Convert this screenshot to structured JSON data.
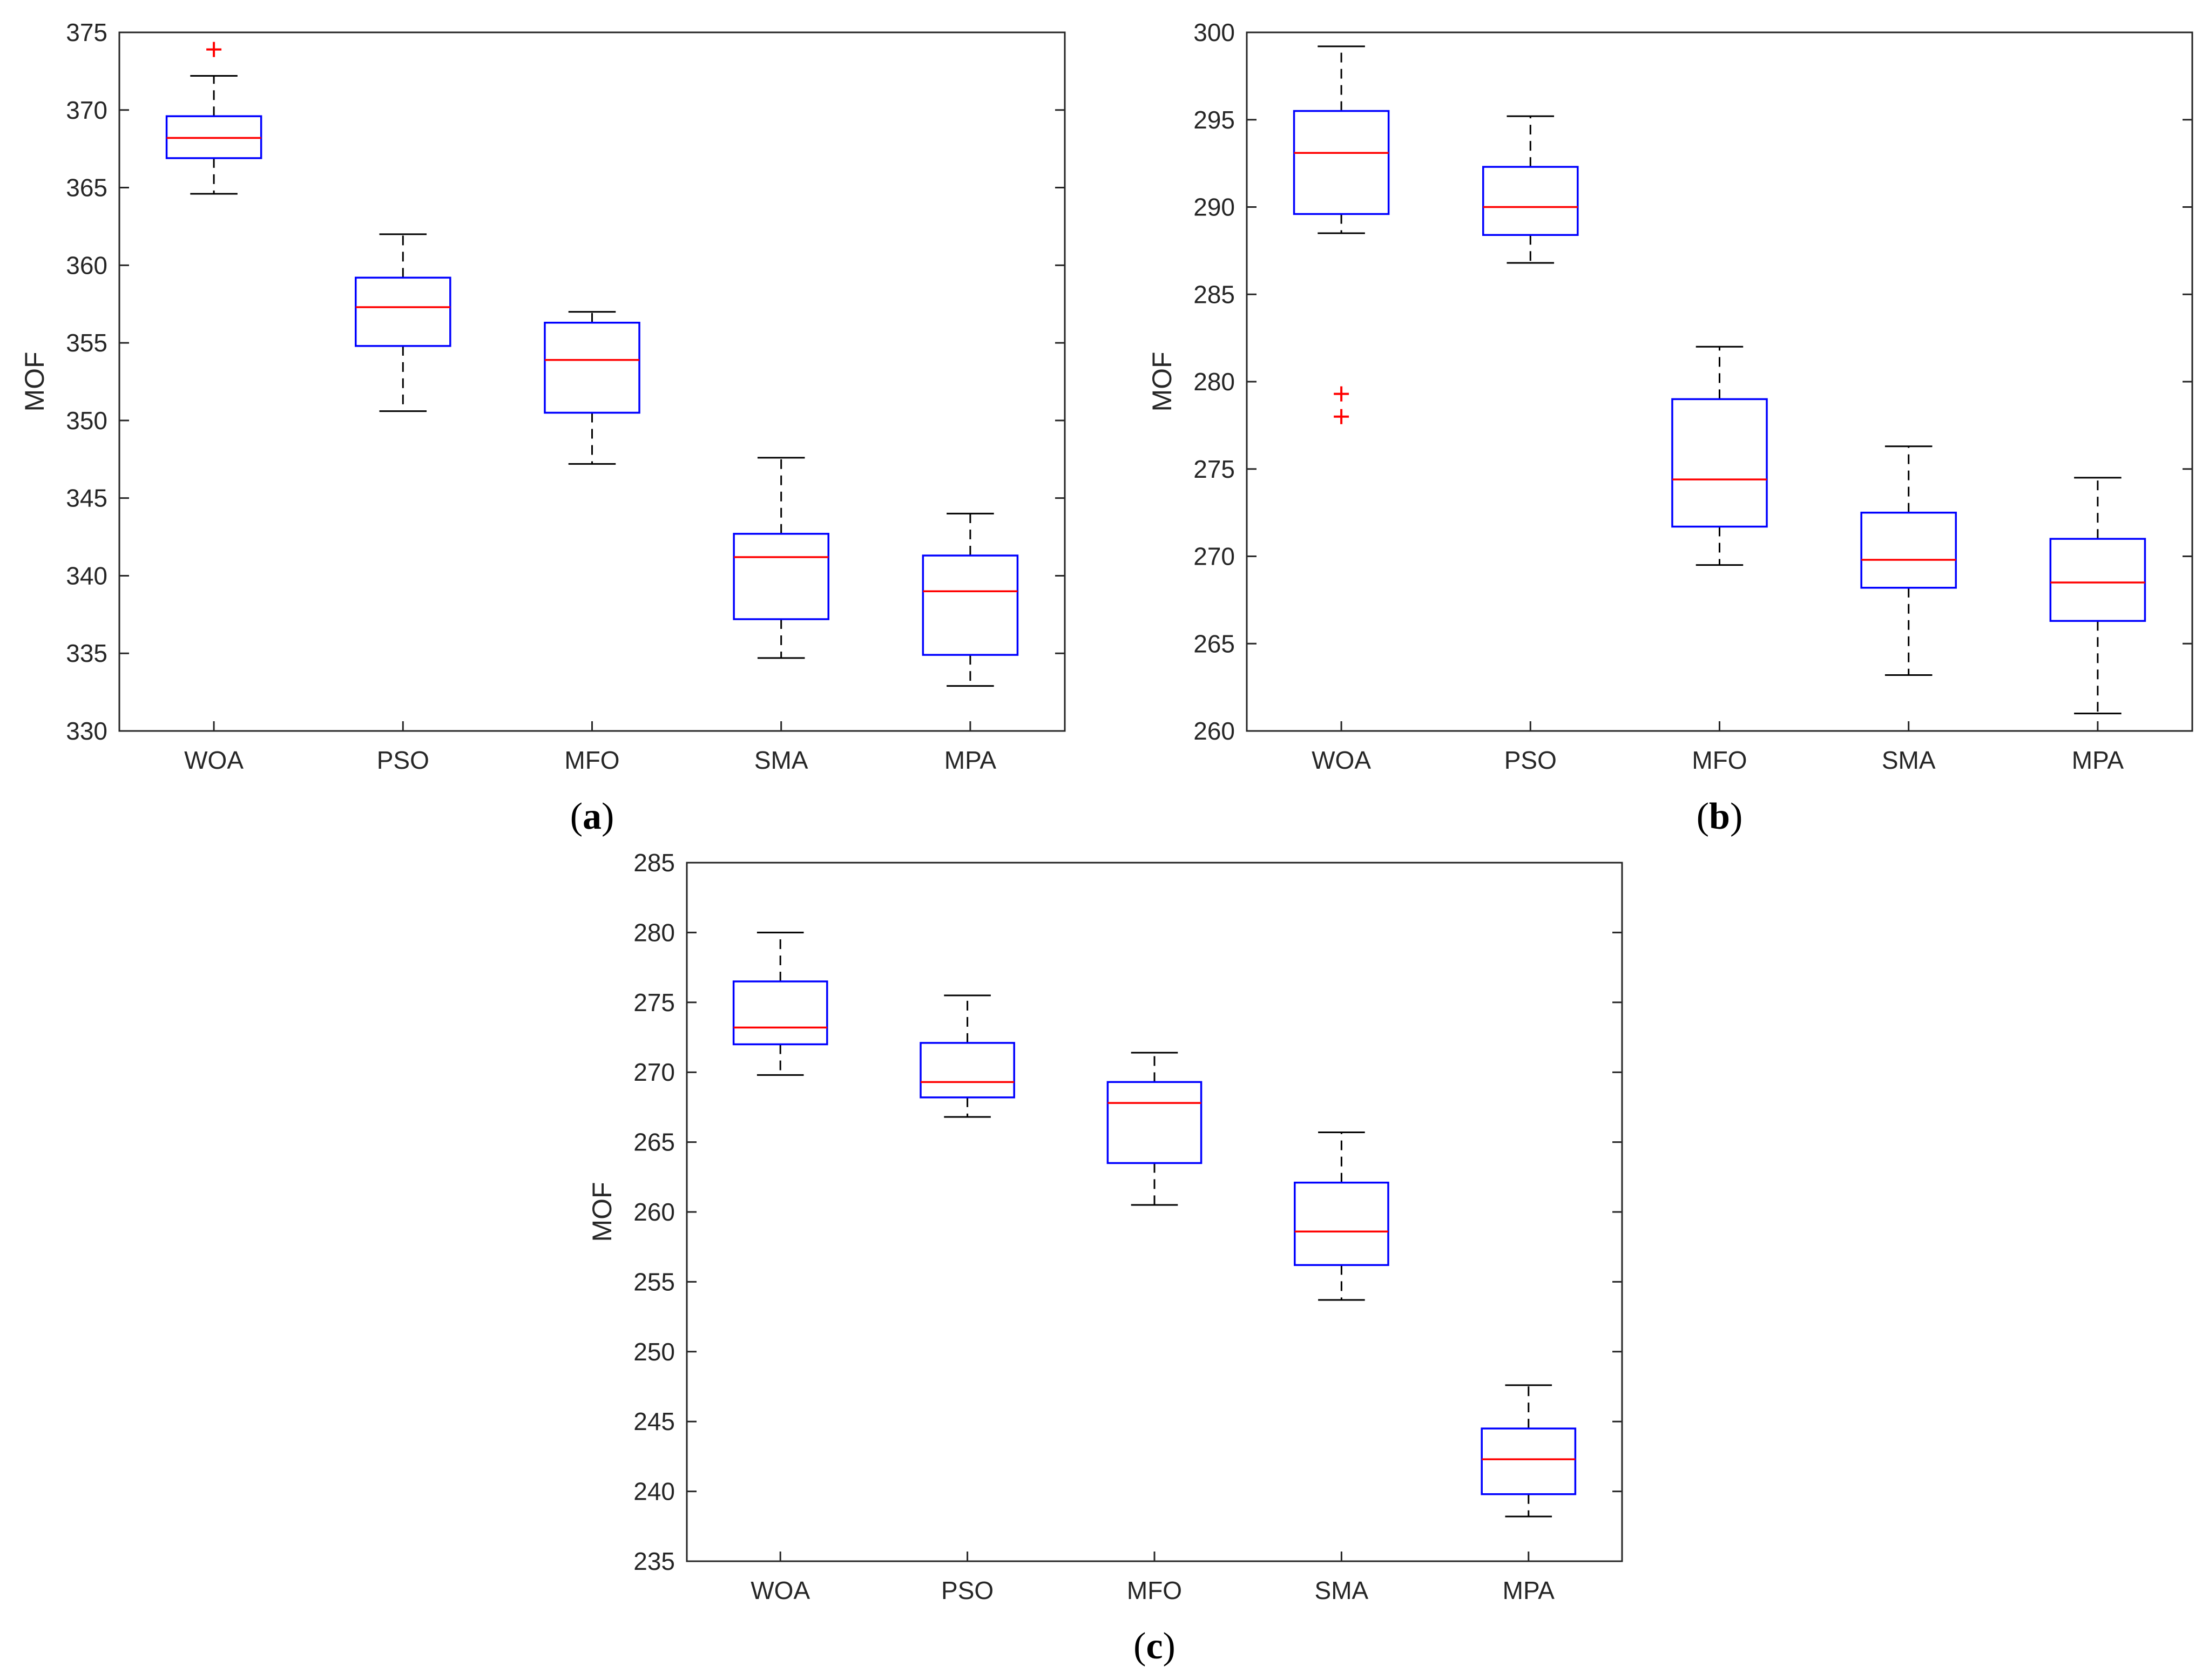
{
  "colors": {
    "box": "#0000ff",
    "median": "#ff0000",
    "whisker": "#000000",
    "outlier": "#ff0000",
    "axis": "#262626",
    "tick_text": "#262626"
  },
  "chart_data": [
    {
      "type": "boxplot",
      "panel_label": "a",
      "ylabel": "MOF",
      "ylim": [
        330,
        375
      ],
      "yticks": [
        330,
        335,
        340,
        345,
        350,
        355,
        360,
        365,
        370,
        375
      ],
      "categories": [
        "WOA",
        "PSO",
        "MFO",
        "SMA",
        "MPA"
      ],
      "boxes": [
        {
          "name": "WOA",
          "whisker_low": 364.6,
          "q1": 366.9,
          "median": 368.2,
          "q3": 369.6,
          "whisker_high": 372.2,
          "outliers": [
            373.9
          ]
        },
        {
          "name": "PSO",
          "whisker_low": 350.6,
          "q1": 354.8,
          "median": 357.3,
          "q3": 359.2,
          "whisker_high": 362.0,
          "outliers": []
        },
        {
          "name": "MFO",
          "whisker_low": 347.2,
          "q1": 350.5,
          "median": 353.9,
          "q3": 356.3,
          "whisker_high": 357.0,
          "outliers": []
        },
        {
          "name": "SMA",
          "whisker_low": 334.7,
          "q1": 337.2,
          "median": 341.2,
          "q3": 342.7,
          "whisker_high": 347.6,
          "outliers": []
        },
        {
          "name": "MPA",
          "whisker_low": 332.9,
          "q1": 334.9,
          "median": 339.0,
          "q3": 341.3,
          "whisker_high": 344.0,
          "outliers": []
        }
      ]
    },
    {
      "type": "boxplot",
      "panel_label": "b",
      "ylabel": "MOF",
      "ylim": [
        260,
        300
      ],
      "yticks": [
        260,
        265,
        270,
        275,
        280,
        285,
        290,
        295,
        300
      ],
      "categories": [
        "WOA",
        "PSO",
        "MFO",
        "SMA",
        "MPA"
      ],
      "boxes": [
        {
          "name": "WOA",
          "whisker_low": 288.5,
          "q1": 289.6,
          "median": 293.1,
          "q3": 295.5,
          "whisker_high": 299.2,
          "outliers": [
            279.3,
            278.0
          ]
        },
        {
          "name": "PSO",
          "whisker_low": 286.8,
          "q1": 288.4,
          "median": 290.0,
          "q3": 292.3,
          "whisker_high": 295.2,
          "outliers": []
        },
        {
          "name": "MFO",
          "whisker_low": 269.5,
          "q1": 271.7,
          "median": 274.4,
          "q3": 279.0,
          "whisker_high": 282.0,
          "outliers": []
        },
        {
          "name": "SMA",
          "whisker_low": 263.2,
          "q1": 268.2,
          "median": 269.8,
          "q3": 272.5,
          "whisker_high": 276.3,
          "outliers": []
        },
        {
          "name": "MPA",
          "whisker_low": 261.0,
          "q1": 266.3,
          "median": 268.5,
          "q3": 271.0,
          "whisker_high": 274.5,
          "outliers": []
        }
      ]
    },
    {
      "type": "boxplot",
      "panel_label": "c",
      "ylabel": "MOF",
      "ylim": [
        235,
        285
      ],
      "yticks": [
        235,
        240,
        245,
        250,
        255,
        260,
        265,
        270,
        275,
        280,
        285
      ],
      "categories": [
        "WOA",
        "PSO",
        "MFO",
        "SMA",
        "MPA"
      ],
      "boxes": [
        {
          "name": "WOA",
          "whisker_low": 269.8,
          "q1": 272.0,
          "median": 273.2,
          "q3": 276.5,
          "whisker_high": 280.0,
          "outliers": []
        },
        {
          "name": "PSO",
          "whisker_low": 266.8,
          "q1": 268.2,
          "median": 269.3,
          "q3": 272.1,
          "whisker_high": 275.5,
          "outliers": []
        },
        {
          "name": "MFO",
          "whisker_low": 260.5,
          "q1": 263.5,
          "median": 267.8,
          "q3": 269.3,
          "whisker_high": 271.4,
          "outliers": []
        },
        {
          "name": "SMA",
          "whisker_low": 253.7,
          "q1": 256.2,
          "median": 258.6,
          "q3": 262.1,
          "whisker_high": 265.7,
          "outliers": []
        },
        {
          "name": "MPA",
          "whisker_low": 238.2,
          "q1": 239.8,
          "median": 242.3,
          "q3": 244.5,
          "whisker_high": 247.6,
          "outliers": []
        }
      ]
    }
  ]
}
